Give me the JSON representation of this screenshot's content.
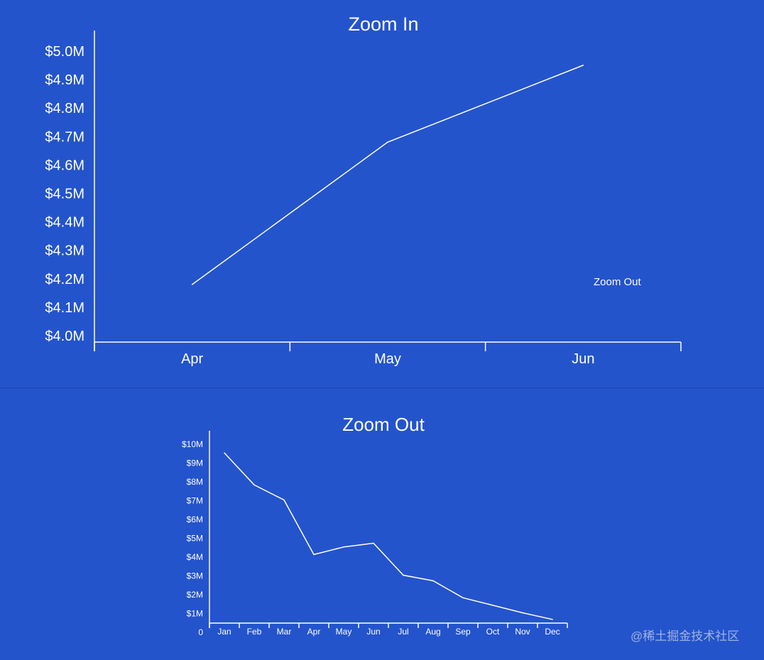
{
  "colors": {
    "background": "#2454cc",
    "line": "#ffffff",
    "watermark": "#9fb3e0"
  },
  "zoom_out_label": "Zoom Out",
  "watermark": "@稀土掘金技术社区",
  "chart_data": [
    {
      "type": "line",
      "title": "Zoom In",
      "categories": [
        "Apr",
        "May",
        "Jun"
      ],
      "series": [
        {
          "values": [
            4.18,
            4.68,
            4.95
          ]
        }
      ],
      "y_ticks": [
        "$4.0M",
        "$4.1M",
        "$4.2M",
        "$4.3M",
        "$4.4M",
        "$4.5M",
        "$4.6M",
        "$4.7M",
        "$4.8M",
        "$4.9M",
        "$5.0M"
      ],
      "ylim": [
        4.0,
        5.0
      ],
      "grid": false
    },
    {
      "type": "line",
      "title": "Zoom Out",
      "categories": [
        "Jan",
        "Feb",
        "Mar",
        "Apr",
        "May",
        "Jun",
        "Jul",
        "Aug",
        "Sep",
        "Oct",
        "Nov",
        "Dec"
      ],
      "series": [
        {
          "values": [
            9.5,
            7.8,
            7.0,
            4.1,
            4.5,
            4.7,
            3.0,
            2.7,
            1.8,
            1.4,
            1.0,
            0.65
          ]
        }
      ],
      "y_ticks": [
        "0",
        "$1M",
        "$2M",
        "$3M",
        "$4M",
        "$5M",
        "$6M",
        "$7M",
        "$8M",
        "$9M",
        "$10M"
      ],
      "ylim": [
        0,
        10
      ],
      "grid": false
    }
  ]
}
